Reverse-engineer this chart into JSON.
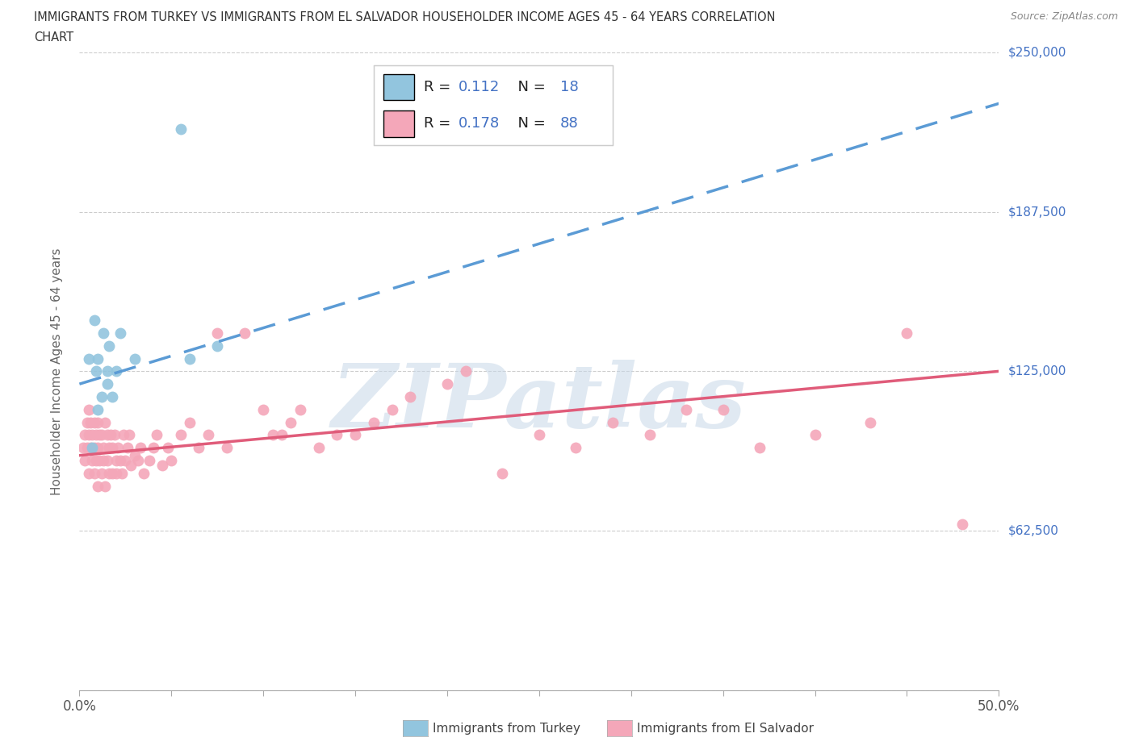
{
  "title_line1": "IMMIGRANTS FROM TURKEY VS IMMIGRANTS FROM EL SALVADOR HOUSEHOLDER INCOME AGES 45 - 64 YEARS CORRELATION",
  "title_line2": "CHART",
  "source": "Source: ZipAtlas.com",
  "ylabel": "Householder Income Ages 45 - 64 years",
  "xlim": [
    0,
    0.5
  ],
  "ylim": [
    0,
    250000
  ],
  "yticks": [
    0,
    62500,
    125000,
    187500,
    250000
  ],
  "ytick_labels": [
    "",
    "$62,500",
    "$125,000",
    "$187,500",
    "$250,000"
  ],
  "xticks": [
    0.0,
    0.05,
    0.1,
    0.15,
    0.2,
    0.25,
    0.3,
    0.35,
    0.4,
    0.45,
    0.5
  ],
  "xtick_labels": [
    "0.0%",
    "",
    "",
    "",
    "",
    "",
    "",
    "",
    "",
    "",
    "50.0%"
  ],
  "turkey_color": "#92C5DE",
  "el_salvador_color": "#F4A7B9",
  "turkey_line_color": "#5B9BD5",
  "el_salvador_line_color": "#E05C7A",
  "R_turkey": 0.112,
  "N_turkey": 18,
  "R_el_salvador": 0.178,
  "N_el_salvador": 88,
  "watermark": "ZIPatlas",
  "watermark_color": "#C8D8E8",
  "background_color": "#FFFFFF",
  "grid_color": "#CCCCCC",
  "title_color": "#333333",
  "ytick_label_color": "#4472C4",
  "legend_label_turkey": "Immigrants from Turkey",
  "legend_label_el_salvador": "Immigrants from El Salvador",
  "turkey_x": [
    0.005,
    0.007,
    0.008,
    0.009,
    0.01,
    0.01,
    0.012,
    0.013,
    0.015,
    0.015,
    0.016,
    0.018,
    0.02,
    0.022,
    0.03,
    0.055,
    0.06,
    0.075
  ],
  "turkey_y": [
    130000,
    95000,
    145000,
    125000,
    130000,
    110000,
    115000,
    140000,
    125000,
    120000,
    135000,
    115000,
    125000,
    140000,
    130000,
    220000,
    130000,
    135000
  ],
  "el_salvador_x": [
    0.002,
    0.003,
    0.003,
    0.004,
    0.004,
    0.005,
    0.005,
    0.005,
    0.006,
    0.006,
    0.007,
    0.007,
    0.008,
    0.008,
    0.008,
    0.009,
    0.009,
    0.01,
    0.01,
    0.01,
    0.011,
    0.011,
    0.012,
    0.012,
    0.013,
    0.013,
    0.014,
    0.014,
    0.015,
    0.015,
    0.016,
    0.016,
    0.017,
    0.018,
    0.018,
    0.019,
    0.02,
    0.02,
    0.021,
    0.022,
    0.023,
    0.024,
    0.025,
    0.026,
    0.027,
    0.028,
    0.03,
    0.032,
    0.033,
    0.035,
    0.038,
    0.04,
    0.042,
    0.045,
    0.048,
    0.05,
    0.055,
    0.06,
    0.065,
    0.07,
    0.075,
    0.08,
    0.09,
    0.1,
    0.105,
    0.11,
    0.115,
    0.12,
    0.13,
    0.14,
    0.15,
    0.16,
    0.17,
    0.18,
    0.2,
    0.21,
    0.23,
    0.25,
    0.27,
    0.29,
    0.31,
    0.33,
    0.35,
    0.37,
    0.4,
    0.43,
    0.45,
    0.48
  ],
  "el_salvador_y": [
    95000,
    100000,
    90000,
    105000,
    95000,
    100000,
    85000,
    110000,
    95000,
    105000,
    90000,
    100000,
    85000,
    95000,
    105000,
    90000,
    100000,
    80000,
    95000,
    105000,
    90000,
    100000,
    85000,
    100000,
    90000,
    95000,
    80000,
    105000,
    90000,
    100000,
    85000,
    95000,
    100000,
    85000,
    95000,
    100000,
    90000,
    85000,
    95000,
    90000,
    85000,
    100000,
    90000,
    95000,
    100000,
    88000,
    92000,
    90000,
    95000,
    85000,
    90000,
    95000,
    100000,
    88000,
    95000,
    90000,
    100000,
    105000,
    95000,
    100000,
    140000,
    95000,
    140000,
    110000,
    100000,
    100000,
    105000,
    110000,
    95000,
    100000,
    100000,
    105000,
    110000,
    115000,
    120000,
    125000,
    85000,
    100000,
    95000,
    105000,
    100000,
    110000,
    110000,
    95000,
    100000,
    105000,
    140000,
    65000
  ]
}
